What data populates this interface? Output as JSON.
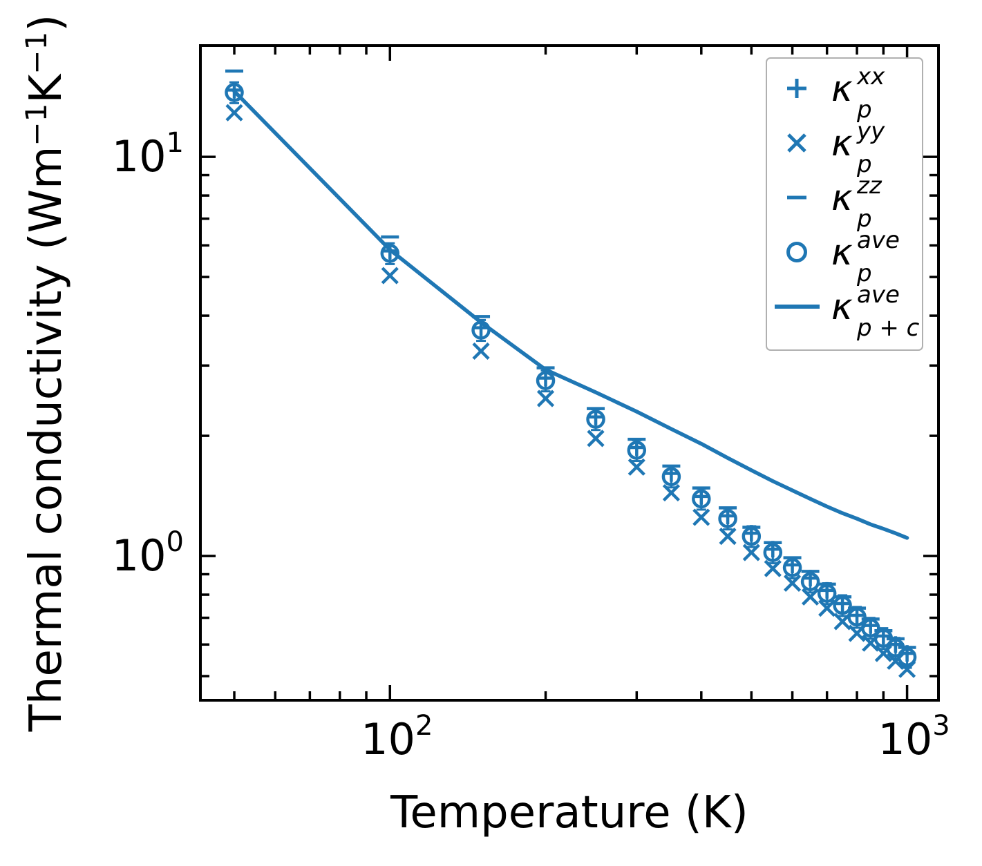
{
  "figure": {
    "background": "#ffffff"
  },
  "chart_data": {
    "type": "scatter",
    "x_scale": "log",
    "y_scale": "log",
    "xlabel": "Temperature (K)",
    "ylabel": "Thermal conductivity (Wm⁻¹K⁻¹)",
    "ylabel_segments": [
      {
        "text": "Thermal conductivity (Wm"
      },
      {
        "text": "−1",
        "sup": true
      },
      {
        "text": "K"
      },
      {
        "text": "−1",
        "sup": true
      },
      {
        "text": ")"
      }
    ],
    "color": "#1f77b4",
    "xlim": [
      43,
      1150
    ],
    "ylim": [
      0.435,
      19
    ],
    "x_major_ticks": [
      100,
      1000
    ],
    "x_minor_ticks": [
      50,
      60,
      70,
      80,
      90,
      200,
      300,
      400,
      500,
      600,
      700,
      800,
      900
    ],
    "y_major_ticks": [
      1,
      10
    ],
    "y_minor_ticks": [
      0.5,
      0.6,
      0.7,
      0.8,
      0.9,
      2,
      3,
      4,
      5,
      6,
      7,
      8,
      9
    ],
    "x_tick_labels": [
      "10²",
      "10³"
    ],
    "y_tick_labels": [
      "10⁰",
      "10¹"
    ],
    "grid": false,
    "temperatures": [
      50,
      100,
      150,
      200,
      250,
      300,
      350,
      400,
      450,
      500,
      550,
      600,
      650,
      700,
      750,
      800,
      850,
      900,
      950,
      1000
    ],
    "series": [
      {
        "id": "kappa_p_xx",
        "label": "κ_p^xx",
        "marker": "plus",
        "values": [
          14.7,
          5.81,
          3.73,
          2.79,
          2.23,
          1.87,
          1.61,
          1.41,
          1.26,
          1.14,
          1.04,
          0.95,
          0.88,
          0.82,
          0.76,
          0.71,
          0.67,
          0.63,
          0.6,
          0.57
        ]
      },
      {
        "id": "kappa_p_yy",
        "label": "κ_p^yy",
        "marker": "x",
        "values": [
          12.9,
          5.04,
          3.26,
          2.48,
          1.97,
          1.67,
          1.44,
          1.25,
          1.12,
          1.02,
          0.93,
          0.855,
          0.79,
          0.74,
          0.685,
          0.64,
          0.605,
          0.57,
          0.545,
          0.52
        ]
      },
      {
        "id": "kappa_p_zz",
        "label": "κ_p^zz",
        "marker": "dash",
        "values": [
          16.4,
          6.3,
          3.98,
          2.96,
          2.34,
          1.96,
          1.68,
          1.48,
          1.32,
          1.18,
          1.08,
          0.99,
          0.915,
          0.85,
          0.79,
          0.74,
          0.695,
          0.65,
          0.62,
          0.59
        ]
      },
      {
        "id": "kappa_p_ave",
        "label": "κ_p^ave",
        "marker": "circle",
        "error_frac": 0.06,
        "values": [
          14.5,
          5.73,
          3.68,
          2.75,
          2.2,
          1.84,
          1.58,
          1.39,
          1.24,
          1.12,
          1.02,
          0.935,
          0.862,
          0.806,
          0.752,
          0.703,
          0.66,
          0.622,
          0.588,
          0.558
        ]
      },
      {
        "id": "kappa_p_plus_c_ave",
        "label": "κ_{p+c}^ave",
        "marker": "line",
        "values": [
          14.6,
          5.85,
          3.85,
          2.93,
          2.57,
          2.3,
          2.08,
          1.91,
          1.76,
          1.64,
          1.54,
          1.46,
          1.39,
          1.33,
          1.28,
          1.24,
          1.2,
          1.17,
          1.14,
          1.11
        ]
      }
    ],
    "legend": {
      "position": "upper-right",
      "entries": [
        {
          "marker": "plus",
          "sym": "κ",
          "sup": "xx",
          "sub": "p"
        },
        {
          "marker": "x",
          "sym": "κ",
          "sup": "yy",
          "sub": "p"
        },
        {
          "marker": "dash",
          "sym": "κ",
          "sup": "zz",
          "sub": "p"
        },
        {
          "marker": "circle",
          "sym": "κ",
          "sup": "ave",
          "sub": "p"
        },
        {
          "marker": "line",
          "sym": "κ",
          "sup": "ave",
          "sub": "p + c"
        }
      ]
    }
  }
}
